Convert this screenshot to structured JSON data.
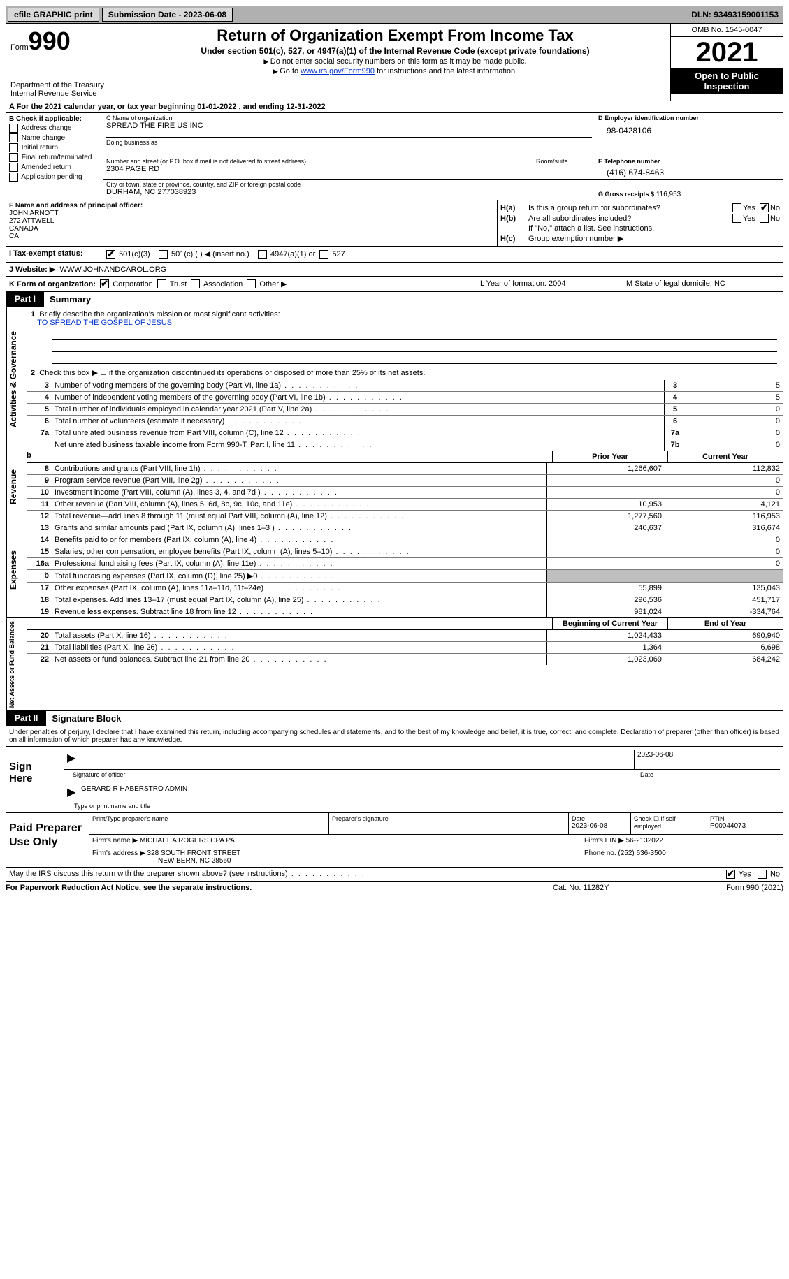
{
  "topbar": {
    "efile": "efile GRAPHIC print",
    "submission_label": "Submission Date - 2023-06-08",
    "dln": "DLN: 93493159001153"
  },
  "header": {
    "form_label": "Form",
    "form_number": "990",
    "dept": "Department of the Treasury",
    "irs": "Internal Revenue Service",
    "title": "Return of Organization Exempt From Income Tax",
    "subtitle": "Under section 501(c), 527, or 4947(a)(1) of the Internal Revenue Code (except private foundations)",
    "note1": "Do not enter social security numbers on this form as it may be made public.",
    "note2_pre": "Go to ",
    "note2_link": "www.irs.gov/Form990",
    "note2_post": " for instructions and the latest information.",
    "omb": "OMB No. 1545-0047",
    "year": "2021",
    "inspection": "Open to Public Inspection"
  },
  "row_a": "A For the 2021 calendar year, or tax year beginning 01-01-2022   , and ending 12-31-2022",
  "col_b": {
    "header": "B Check if applicable:",
    "opts": [
      "Address change",
      "Name change",
      "Initial return",
      "Final return/terminated",
      "Amended return",
      "Application pending"
    ]
  },
  "col_c": {
    "name_lbl": "C Name of organization",
    "name": "SPREAD THE FIRE US INC",
    "dba_lbl": "Doing business as",
    "addr_lbl": "Number and street (or P.O. box if mail is not delivered to street address)",
    "addr": "2304 PAGE RD",
    "suite_lbl": "Room/suite",
    "city_lbl": "City or town, state or province, country, and ZIP or foreign postal code",
    "city": "DURHAM, NC  277038923"
  },
  "col_d": {
    "ein_lbl": "D Employer identification number",
    "ein": "98-0428106",
    "phone_lbl": "E Telephone number",
    "phone": "(416) 674-8463",
    "gross_lbl": "G Gross receipts $",
    "gross": "116,953"
  },
  "col_f": {
    "lbl": "F Name and address of principal officer:",
    "name": "JOHN ARNOTT",
    "addr1": "272 ATTWELL",
    "addr2": "CANADA",
    "addr3": "CA"
  },
  "col_h": {
    "ha": "Is this a group return for subordinates?",
    "hb": "Are all subordinates included?",
    "hb_note": "If \"No,\" attach a list. See instructions.",
    "hc": "Group exemption number ▶",
    "yes": "Yes",
    "no": "No"
  },
  "row_i": {
    "lbl": "I   Tax-exempt status:",
    "opts": [
      "501(c)(3)",
      "501(c) (  ) ◀ (insert no.)",
      "4947(a)(1) or",
      "527"
    ]
  },
  "row_j": {
    "lbl": "J   Website: ▶",
    "val": "WWW.JOHNANDCAROL.ORG"
  },
  "row_k": {
    "k1_lbl": "K Form of organization:",
    "k1_opts": [
      "Corporation",
      "Trust",
      "Association",
      "Other ▶"
    ],
    "k2": "L Year of formation: 2004",
    "k3": "M State of legal domicile: NC"
  },
  "part1": {
    "tab": "Part I",
    "title": "Summary",
    "q1_lbl": "1",
    "q1_text": "Briefly describe the organization's mission or most significant activities:",
    "q1_mission": "TO SPREAD THE GOSPEL OF JESUS",
    "q2_num": "2",
    "q2_text": "Check this box ▶ ☐  if the organization discontinued its operations or disposed of more than 25% of its net assets.",
    "vtabs": [
      "Activities & Governance",
      "Revenue",
      "Expenses",
      "Net Assets or Fund Balances"
    ]
  },
  "gov_lines": [
    {
      "num": "3",
      "desc": "Number of voting members of the governing body (Part VI, line 1a)",
      "box": "3",
      "val": "5"
    },
    {
      "num": "4",
      "desc": "Number of independent voting members of the governing body (Part VI, line 1b)",
      "box": "4",
      "val": "5"
    },
    {
      "num": "5",
      "desc": "Total number of individuals employed in calendar year 2021 (Part V, line 2a)",
      "box": "5",
      "val": "0"
    },
    {
      "num": "6",
      "desc": "Total number of volunteers (estimate if necessary)",
      "box": "6",
      "val": "0"
    },
    {
      "num": "7a",
      "desc": "Total unrelated business revenue from Part VIII, column (C), line 12",
      "box": "7a",
      "val": "0"
    },
    {
      "num": "",
      "desc": "Net unrelated business taxable income from Form 990-T, Part I, line 11",
      "box": "7b",
      "val": "0"
    }
  ],
  "col_hdr": {
    "prior": "Prior Year",
    "current": "Current Year"
  },
  "rev_lines": [
    {
      "num": "8",
      "desc": "Contributions and grants (Part VIII, line 1h)",
      "p": "1,266,607",
      "c": "112,832"
    },
    {
      "num": "9",
      "desc": "Program service revenue (Part VIII, line 2g)",
      "p": "",
      "c": "0"
    },
    {
      "num": "10",
      "desc": "Investment income (Part VIII, column (A), lines 3, 4, and 7d )",
      "p": "",
      "c": "0"
    },
    {
      "num": "11",
      "desc": "Other revenue (Part VIII, column (A), lines 5, 6d, 8c, 9c, 10c, and 11e)",
      "p": "10,953",
      "c": "4,121"
    },
    {
      "num": "12",
      "desc": "Total revenue—add lines 8 through 11 (must equal Part VIII, column (A), line 12)",
      "p": "1,277,560",
      "c": "116,953"
    }
  ],
  "exp_lines": [
    {
      "num": "13",
      "desc": "Grants and similar amounts paid (Part IX, column (A), lines 1–3 )",
      "p": "240,637",
      "c": "316,674"
    },
    {
      "num": "14",
      "desc": "Benefits paid to or for members (Part IX, column (A), line 4)",
      "p": "",
      "c": "0"
    },
    {
      "num": "15",
      "desc": "Salaries, other compensation, employee benefits (Part IX, column (A), lines 5–10)",
      "p": "",
      "c": "0"
    },
    {
      "num": "16a",
      "desc": "Professional fundraising fees (Part IX, column (A), line 11e)",
      "p": "",
      "c": "0"
    },
    {
      "num": "b",
      "desc": "Total fundraising expenses (Part IX, column (D), line 25) ▶0",
      "p": "shade",
      "c": "shade"
    },
    {
      "num": "17",
      "desc": "Other expenses (Part IX, column (A), lines 11a–11d, 11f–24e)",
      "p": "55,899",
      "c": "135,043"
    },
    {
      "num": "18",
      "desc": "Total expenses. Add lines 13–17 (must equal Part IX, column (A), line 25)",
      "p": "296,536",
      "c": "451,717"
    },
    {
      "num": "19",
      "desc": "Revenue less expenses. Subtract line 18 from line 12",
      "p": "981,024",
      "c": "-334,764"
    }
  ],
  "net_hdr": {
    "begin": "Beginning of Current Year",
    "end": "End of Year"
  },
  "net_lines": [
    {
      "num": "20",
      "desc": "Total assets (Part X, line 16)",
      "p": "1,024,433",
      "c": "690,940"
    },
    {
      "num": "21",
      "desc": "Total liabilities (Part X, line 26)",
      "p": "1,364",
      "c": "6,698"
    },
    {
      "num": "22",
      "desc": "Net assets or fund balances. Subtract line 21 from line 20",
      "p": "1,023,069",
      "c": "684,242"
    }
  ],
  "part2": {
    "tab": "Part II",
    "title": "Signature Block",
    "intro": "Under penalties of perjury, I declare that I have examined this return, including accompanying schedules and statements, and to the best of my knowledge and belief, it is true, correct, and complete. Declaration of preparer (other than officer) is based on all information of which preparer has any knowledge."
  },
  "sign": {
    "label": "Sign Here",
    "sig_officer": "Signature of officer",
    "date": "2023-06-08",
    "date_lbl": "Date",
    "name": "GERARD R HABERSTRO  ADMIN",
    "name_lbl": "Type or print name and title"
  },
  "paid": {
    "label": "Paid Preparer Use Only",
    "print_lbl": "Print/Type preparer's name",
    "sig_lbl": "Preparer's signature",
    "date_lbl": "Date",
    "date": "2023-06-08",
    "check_lbl": "Check ☐ if self-employed",
    "ptin_lbl": "PTIN",
    "ptin": "P00044073",
    "firm_name_lbl": "Firm's name    ▶",
    "firm_name": "MICHAEL A ROGERS CPA PA",
    "firm_ein_lbl": "Firm's EIN ▶",
    "firm_ein": "56-2132022",
    "firm_addr_lbl": "Firm's address ▶",
    "firm_addr1": "328 SOUTH FRONT STREET",
    "firm_addr2": "NEW BERN, NC  28560",
    "phone_lbl": "Phone no.",
    "phone": "(252) 636-3500"
  },
  "discuss": {
    "text": "May the IRS discuss this return with the preparer shown above? (see instructions)",
    "yes": "Yes",
    "no": "No"
  },
  "footer": {
    "f1": "For Paperwork Reduction Act Notice, see the separate instructions.",
    "f2": "Cat. No. 11282Y",
    "f3": "Form 990 (2021)"
  }
}
